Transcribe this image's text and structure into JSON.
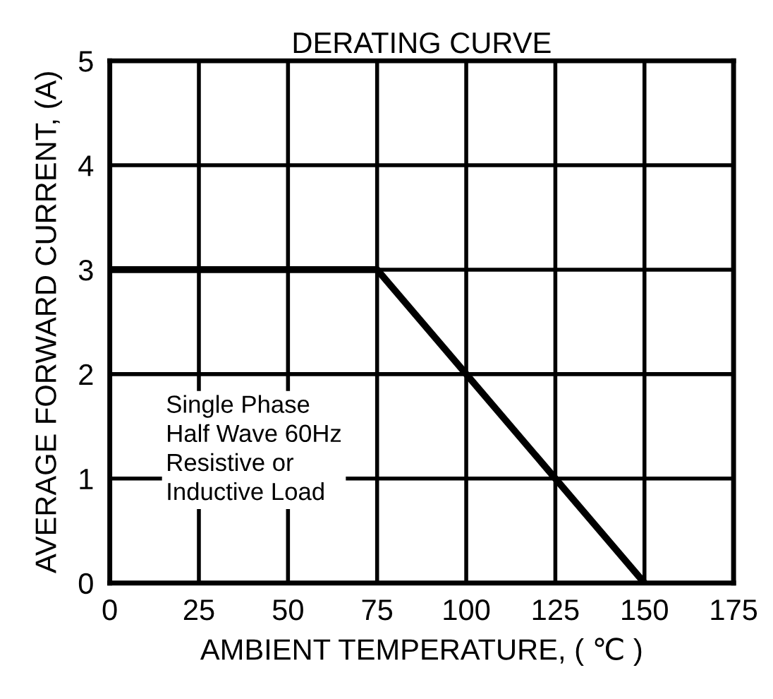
{
  "chart_data": {
    "type": "line",
    "title": "DERATING CURVE",
    "xlabel": "AMBIENT TEMPERATURE, ( ℃ )",
    "ylabel": "AVERAGE FORWARD CURRENT, (A)",
    "x": [
      0,
      75,
      150
    ],
    "series": [
      {
        "color": "#000000",
        "values": [
          3,
          3,
          0
        ]
      }
    ],
    "xlim": [
      0,
      175
    ],
    "xticks": [
      0,
      25,
      50,
      75,
      100,
      125,
      150,
      175
    ],
    "ylim": [
      0,
      5
    ],
    "yticks": [
      0,
      1,
      2,
      3,
      4,
      5
    ],
    "grid": true,
    "marker": "none",
    "line_style": "solid",
    "annotations": [
      "Single Phase\nHalf Wave 60Hz\nResistive or\nInductive Load"
    ]
  }
}
